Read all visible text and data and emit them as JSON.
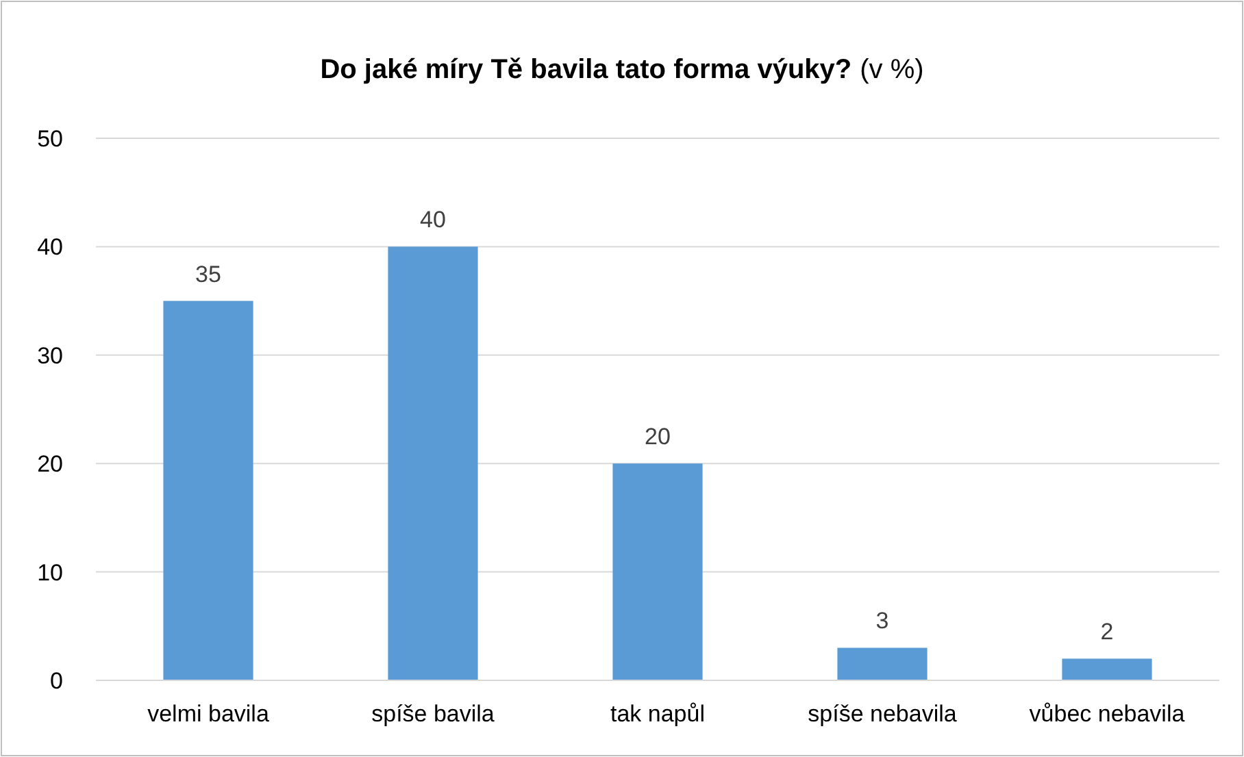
{
  "chart_data": {
    "type": "bar",
    "title": "Do jaké míry Tě bavila tato forma výuky?",
    "subtitle": "(v %)",
    "categories": [
      "velmi bavila",
      "spíše bavila",
      "tak napůl",
      "spíše nebavila",
      "vůbec nebavila"
    ],
    "values": [
      35,
      40,
      20,
      3,
      2
    ],
    "color": "#5b9bd5",
    "ylim": [
      0,
      50
    ],
    "yticks": [
      0,
      10,
      20,
      30,
      40,
      50
    ],
    "grid": "y",
    "data_labels": true
  }
}
